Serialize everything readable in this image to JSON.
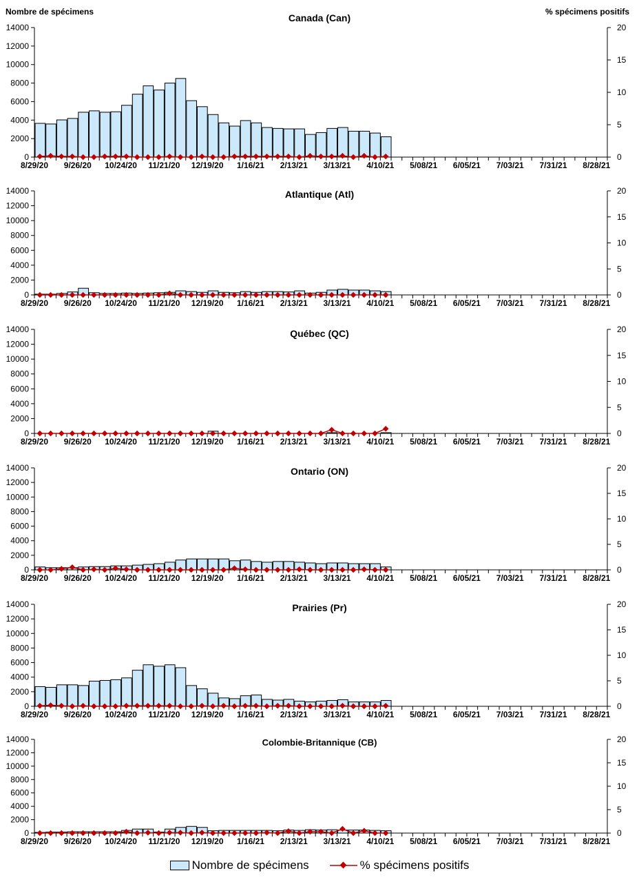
{
  "chart_data": {
    "type": "bar+line",
    "left_axis_label": "Nombre de spécimens",
    "right_axis_label": "% spécimens positifs",
    "left_ylim": [
      0,
      14000
    ],
    "left_ticks": [
      "0",
      "2000",
      "4000",
      "6000",
      "8000",
      "10000",
      "12000",
      "14000"
    ],
    "right_ylim": [
      0,
      20
    ],
    "right_ticks": [
      "0",
      "5",
      "10",
      "15",
      "20"
    ],
    "x_tick_labels": [
      "8/29/20",
      "9/26/20",
      "10/24/20",
      "11/21/20",
      "12/19/20",
      "1/16/21",
      "2/13/21",
      "3/13/21",
      "4/10/21",
      "5/08/21",
      "6/05/21",
      "7/03/21",
      "7/31/21",
      "8/28/21"
    ],
    "x_range": [
      "8/29/20",
      "8/28/21"
    ],
    "weeks_per_label": 4,
    "colors": {
      "bar": "#cce9fb",
      "bar_border": "#000000",
      "line": "#c00000"
    },
    "legend": {
      "bar": "Nombre de spécimens",
      "line": "% spécimens positifs",
      "placement": "bottom"
    },
    "panels": [
      {
        "title": "Canada (Can)",
        "specimens": [
          3650,
          3580,
          4020,
          4180,
          4850,
          5000,
          4850,
          4900,
          5600,
          6800,
          7700,
          7250,
          8000,
          8500,
          6100,
          5450,
          4600,
          3700,
          3350,
          3950,
          3700,
          3200,
          3100,
          3050,
          3050,
          2450,
          2650,
          3100,
          3200,
          2800,
          2800,
          2600,
          2200
        ],
        "percent_positive": [
          0.1,
          0.2,
          0.1,
          0.1,
          0,
          0,
          0.1,
          0.1,
          0.1,
          0,
          0,
          0,
          0.1,
          0,
          0,
          0.1,
          0,
          0,
          0.1,
          0.1,
          0.1,
          0.1,
          0.1,
          0.1,
          0,
          0.2,
          0.1,
          0.1,
          0.2,
          0,
          0.2,
          0,
          0.1
        ]
      },
      {
        "title": "Atlantique (Atl)",
        "specimens": [
          100,
          100,
          200,
          400,
          900,
          300,
          200,
          200,
          250,
          200,
          250,
          300,
          350,
          550,
          450,
          350,
          550,
          350,
          300,
          450,
          350,
          450,
          450,
          400,
          550,
          250,
          350,
          650,
          750,
          650,
          650,
          550,
          450
        ],
        "percent_positive": [
          0,
          0,
          0,
          0,
          0,
          0,
          0,
          0,
          0,
          0,
          0,
          0,
          0.3,
          0,
          0,
          0,
          0,
          0,
          0,
          0,
          0,
          0,
          0,
          0,
          0,
          0,
          0,
          0,
          0,
          0,
          0,
          0,
          0
        ]
      },
      {
        "title": "Québec (QC)",
        "specimens": [
          0,
          0,
          0,
          0,
          0,
          0,
          0,
          0,
          0,
          0,
          0,
          0,
          0,
          0,
          0,
          0,
          300,
          0,
          0,
          0,
          0,
          0,
          0,
          0,
          0,
          0,
          0,
          100,
          0,
          0,
          0,
          0,
          100
        ],
        "percent_positive": [
          0,
          0,
          0,
          0,
          0,
          0,
          0,
          0,
          0,
          0,
          0,
          0,
          0,
          0,
          0,
          0,
          0,
          0,
          0,
          0,
          0,
          0,
          0,
          0,
          0,
          0,
          0,
          0.7,
          0,
          0,
          0,
          0,
          0.9
        ]
      },
      {
        "title": "Ontario (ON)",
        "specimens": [
          400,
          300,
          300,
          300,
          400,
          450,
          450,
          550,
          550,
          650,
          750,
          850,
          1050,
          1350,
          1500,
          1500,
          1500,
          1500,
          1250,
          1350,
          1150,
          1050,
          1150,
          1150,
          1050,
          950,
          850,
          950,
          950,
          850,
          850,
          850,
          400
        ],
        "percent_positive": [
          0,
          0,
          0.2,
          0.5,
          0,
          0.1,
          0,
          0.3,
          0.1,
          0,
          0,
          0,
          0,
          0,
          0,
          0,
          0,
          0,
          0.3,
          0.1,
          0,
          0,
          0,
          0,
          0.1,
          0,
          0,
          0,
          0,
          0,
          0.1,
          0,
          0
        ]
      },
      {
        "title": "Prairies (Pr)",
        "specimens": [
          2700,
          2600,
          2950,
          2950,
          2850,
          3450,
          3550,
          3650,
          3900,
          4950,
          5700,
          5500,
          5700,
          5300,
          2850,
          2400,
          1800,
          1150,
          1050,
          1450,
          1550,
          950,
          850,
          950,
          700,
          600,
          700,
          800,
          900,
          600,
          600,
          600,
          800
        ],
        "percent_positive": [
          0.1,
          0.2,
          0.1,
          0,
          0.1,
          0,
          0,
          0,
          0.1,
          0.1,
          0.1,
          0.1,
          0.1,
          0,
          0,
          0.1,
          0,
          0.1,
          0,
          0.1,
          0.1,
          0,
          0.1,
          0.1,
          0,
          0,
          0,
          0,
          0.1,
          0,
          0,
          0,
          0.1
        ]
      },
      {
        "title": "Colombie-Britannique (CB)",
        "specimens": [
          100,
          150,
          150,
          200,
          200,
          200,
          200,
          200,
          400,
          600,
          600,
          150,
          600,
          850,
          1000,
          850,
          350,
          400,
          400,
          400,
          400,
          400,
          350,
          450,
          400,
          500,
          450,
          500,
          450,
          450,
          450,
          400,
          350
        ],
        "percent_positive": [
          0,
          0,
          0,
          0,
          0,
          0,
          0,
          0,
          0.3,
          0,
          0.1,
          0,
          0.1,
          0.1,
          0,
          0.1,
          0,
          0,
          0,
          0,
          0,
          0.1,
          0,
          0.4,
          0,
          0.3,
          0.3,
          0,
          0.9,
          0,
          0.5,
          0,
          0
        ]
      }
    ]
  }
}
